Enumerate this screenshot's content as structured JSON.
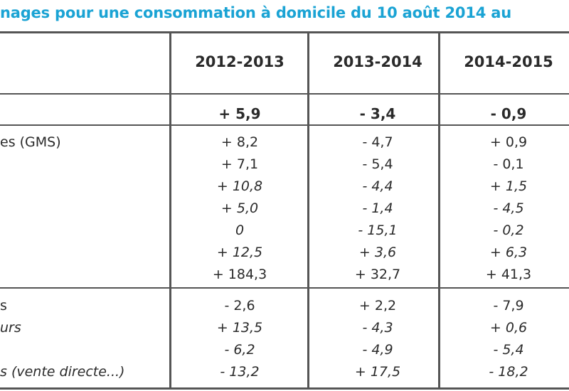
{
  "title": "nages pour une consommation à domicile du 10 août 2014 au",
  "columns": [
    "2012-2013",
    "2013-2014",
    "2014-2015"
  ],
  "total": [
    "+ 5,9",
    "- 3,4",
    "- 0,9"
  ],
  "group1": {
    "labels": [
      "es (GMS)"
    ],
    "rows": [
      [
        "+ 8,2",
        "- 4,7",
        "+ 0,9"
      ],
      [
        "+ 7,1",
        "- 5,4",
        "- 0,1"
      ],
      [
        "+ 10,8",
        "- 4,4",
        "+ 1,5"
      ],
      [
        "+ 5,0",
        "- 1,4",
        "- 4,5"
      ],
      [
        "0",
        "- 15,1",
        "- 0,2"
      ],
      [
        "+ 12,5",
        "+ 3,6",
        "+ 6,3"
      ],
      [
        "+ 184,3",
        "+ 32,7",
        "+ 41,3"
      ]
    ]
  },
  "group2": {
    "labels": [
      "s",
      "urs",
      "",
      "s (vente directe...)"
    ],
    "rows": [
      [
        "- 2,6",
        "+ 2,2",
        "- 7,9"
      ],
      [
        "+ 13,5",
        "- 4,3",
        "+ 0,6"
      ],
      [
        "- 6,2",
        "- 4,9",
        "- 5,4"
      ],
      [
        "- 13,2",
        "+ 17,5",
        "- 18,2"
      ]
    ]
  }
}
